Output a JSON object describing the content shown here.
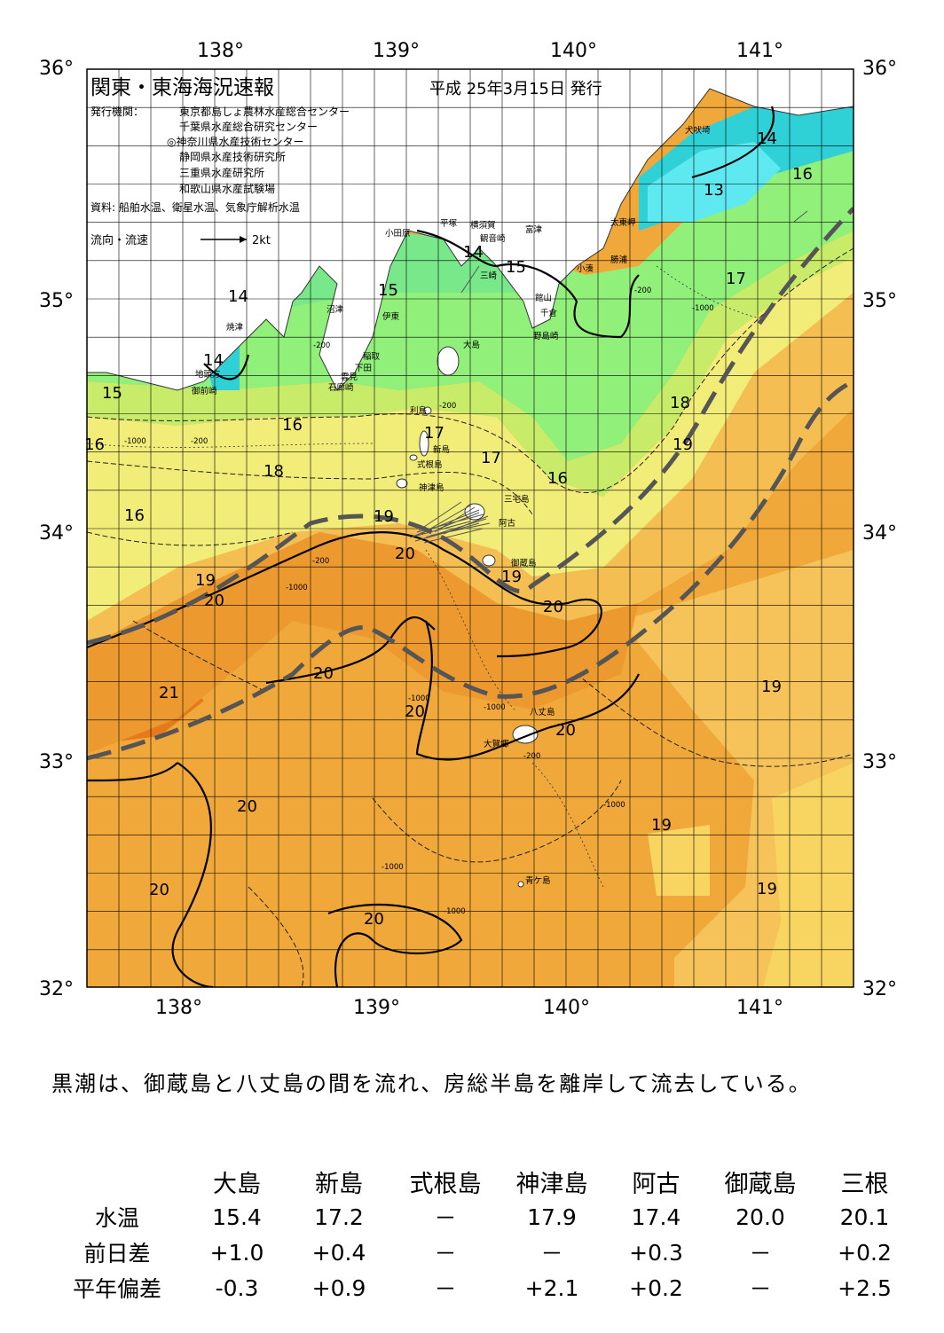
{
  "map": {
    "title": "関東・東海海況速報",
    "issue_date": "平成 25年3月15日 発行",
    "publisher_label": "発行機関：",
    "publishers": [
      "東京都島しょ農林水産総合センター",
      "千葉県水産総合研究センター",
      "◎神奈川県水産技術センター",
      "静岡県水産技術研究所",
      "三重県水産研究所",
      "和歌山県水産試験場"
    ],
    "source": "資料: 船舶水温、衛星水温、気象庁解析水温",
    "current_legend_label": "流向・流速",
    "current_legend_unit": "2kt",
    "lon_labels": [
      "138°",
      "139°",
      "140°",
      "141°"
    ],
    "lat_labels": [
      "36°",
      "35°",
      "34°",
      "33°",
      "32°"
    ],
    "place_names": [
      "犬吠埼",
      "太東岬",
      "勝浦",
      "小湊",
      "館山",
      "千倉",
      "野島崎",
      "富津",
      "横須賀",
      "観音崎",
      "三崎",
      "平塚",
      "小田原",
      "沼津",
      "伊東",
      "稲取",
      "下田",
      "雲見",
      "石廊崎",
      "大島",
      "利島",
      "新島",
      "式根島",
      "神津島",
      "三宅島",
      "阿古",
      "御蔵島",
      "八丈島",
      "大賀郷",
      "青ケ島",
      "焼津",
      "地頭方",
      "御前崎"
    ],
    "isotherm_labels": [
      "14",
      "16",
      "13",
      "17",
      "14",
      "15",
      "15",
      "14",
      "14",
      "15",
      "16",
      "16",
      "18",
      "17",
      "17",
      "16",
      "16",
      "18",
      "19",
      "19",
      "19",
      "20",
      "19",
      "20",
      "20",
      "20",
      "21",
      "20",
      "20",
      "19",
      "20",
      "19",
      "20",
      "20",
      "19"
    ],
    "depth_labels": [
      "-200",
      "-1000"
    ],
    "colors": {
      "t13": "#5ee8f0",
      "t14": "#2fd0d6",
      "t15": "#78e88a",
      "t16": "#90f07a",
      "t17": "#c8ec6a",
      "t18": "#f2ec78",
      "t19": "#f6c35a",
      "t20": "#f0a83a",
      "t21": "#e47a1c",
      "land": "#ffffff",
      "kuroshio": "#555555"
    }
  },
  "summary": "黒潮は、御蔵島と八丈島の間を流れ、房総半島を離岸して流去している。",
  "observations": {
    "stations": [
      "大島",
      "新島",
      "式根島",
      "神津島",
      "阿古",
      "御蔵島",
      "三根"
    ],
    "rows": [
      {
        "label": "水温",
        "values": [
          "15.4",
          "17.2",
          "－",
          "17.9",
          "17.4",
          "20.0",
          "20.1"
        ]
      },
      {
        "label": "前日差",
        "values": [
          "+1.0",
          "+0.4",
          "－",
          "－",
          "+0.3",
          "－",
          "+0.2"
        ]
      },
      {
        "label": "平年偏差",
        "values": [
          "-0.3",
          "+0.9",
          "－",
          "+2.1",
          "+0.2",
          "－",
          "+2.5"
        ]
      }
    ]
  }
}
